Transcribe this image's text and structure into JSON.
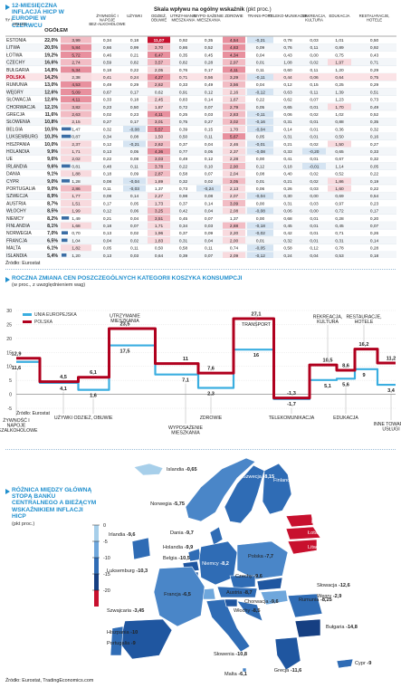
{
  "table": {
    "title": "12-MIESIĘCZNA INFLACJA HICP W EUROPIE W CZERWCU",
    "scale_label": "Skala wpływu na ogólny wskaźnik",
    "scale_unit": "(pkt proc.)",
    "headers": [
      "OGÓŁEM",
      "ŻYWNOŚĆ I NAPOJE BEZ-ALKOHOLOWE",
      "UŻYWKI",
      "ODZIEŻ, OBUWIE",
      "UTRZY-MANIE MIESZKANIA",
      "WYPO-SAŻENIE MIESZKANIA",
      "ZDROWIE",
      "TRANS-PORT",
      "TELEKO-MUNIKACJA",
      "REKREACJA, KULTURA",
      "EDUKACJA",
      "RESTAU-RACJE, HOTELE",
      "INNE TOWARY I USŁUGI"
    ],
    "rows": [
      {
        "country": "ESTONIA",
        "total": "22,0%",
        "v": [
          "3,99",
          "0,34",
          "0,18",
          "11,07",
          "0,92",
          "0,35",
          "4,54",
          "-0,21",
          "0,78",
          "0,03",
          "1,01",
          "0,50"
        ]
      },
      {
        "country": "LITWA",
        "total": "20,5%",
        "v": [
          "5,84",
          "0,66",
          "0,99",
          "3,70",
          "0,86",
          "0,52",
          "4,83",
          "0,09",
          "0,76",
          "0,11",
          "0,89",
          "0,92"
        ]
      },
      {
        "country": "ŁOTWA",
        "total": "19,2%",
        "v": [
          "5,72",
          "0,46",
          "0,21",
          "6,47",
          "0,35",
          "0,45",
          "4,34",
          "0,04",
          "0,43",
          "0,00",
          "0,75",
          "0,43"
        ]
      },
      {
        "country": "CZECHY",
        "total": "16,6%",
        "v": [
          "2,74",
          "0,59",
          "0,82",
          "3,57",
          "0,82",
          "0,28",
          "2,97",
          "0,01",
          "1,08",
          "0,02",
          "1,97",
          "0,71"
        ]
      },
      {
        "country": "BUŁGARIA",
        "total": "14,8%",
        "v": [
          "5,34",
          "0,18",
          "0,22",
          "2,05",
          "0,76",
          "0,17",
          "4,11",
          "0,11",
          "0,60",
          "0,11",
          "1,20",
          "0,29"
        ]
      },
      {
        "country": "POLSKA",
        "total": "14,2%",
        "v": [
          "2,38",
          "0,41",
          "0,24",
          "4,27",
          "0,71",
          "0,56",
          "3,29",
          "-0,11",
          "0,44",
          "0,06",
          "0,64",
          "0,75"
        ],
        "highlight": true
      },
      {
        "country": "RUMUNIA",
        "total": "13,0%",
        "v": [
          "4,53",
          "0,49",
          "0,29",
          "2,62",
          "0,33",
          "0,49",
          "3,56",
          "0,04",
          "0,12",
          "0,15",
          "0,25",
          "0,29"
        ]
      },
      {
        "country": "WĘGRY",
        "total": "12,6%",
        "v": [
          "5,09",
          "0,67",
          "0,17",
          "0,62",
          "0,91",
          "0,12",
          "2,16",
          "-0,12",
          "0,63",
          "0,11",
          "1,39",
          "0,51"
        ]
      },
      {
        "country": "SŁOWACJA",
        "total": "12,6%",
        "v": [
          "4,11",
          "0,33",
          "0,18",
          "2,45",
          "0,83",
          "0,14",
          "1,67",
          "0,22",
          "0,62",
          "0,07",
          "1,23",
          "0,73"
        ]
      },
      {
        "country": "CHORWACJA",
        "total": "12,1%",
        "v": [
          "3,82",
          "0,23",
          "0,50",
          "1,87",
          "0,72",
          "0,07",
          "2,79",
          "0,05",
          "0,65",
          "0,01",
          "1,70",
          "0,49"
        ]
      },
      {
        "country": "GRECJA",
        "total": "11,6%",
        "v": [
          "2,63",
          "0,02",
          "0,23",
          "4,11",
          "0,25",
          "0,03",
          "2,83",
          "-0,11",
          "0,06",
          "0,02",
          "1,02",
          "0,52"
        ]
      },
      {
        "country": "SŁOWENIA",
        "total": "10,8%",
        "v": [
          "2,15",
          "0,27",
          "0,17",
          "3,01",
          "0,75",
          "0,27",
          "3,02",
          "-0,16",
          "0,31",
          "0,01",
          "0,88",
          "0,35"
        ]
      },
      {
        "country": "BELGIA",
        "total": "10,5%",
        "v": [
          "1,47",
          "0,32",
          "-0,08",
          "5,57",
          "0,39",
          "0,15",
          "1,70",
          "-0,04",
          "0,14",
          "0,01",
          "0,36",
          "0,32"
        ]
      },
      {
        "country": "LUKSEMBURG",
        "total": "10,3%",
        "v": [
          "0,87",
          "0,34",
          "0,08",
          "1,50",
          "0,50",
          "0,11",
          "5,67",
          "0,05",
          "0,31",
          "0,01",
          "0,50",
          "0,16"
        ]
      },
      {
        "country": "HISZPANIA",
        "total": "10,0%",
        "v": [
          "2,37",
          "0,12",
          "-0,21",
          "2,62",
          "0,37",
          "0,04",
          "2,46",
          "-0,01",
          "0,21",
          "0,02",
          "1,50",
          "0,27"
        ]
      },
      {
        "country": "HOLANDIA",
        "total": "9,9%",
        "v": [
          "1,71",
          "0,13",
          "0,05",
          "4,36",
          "0,77",
          "0,05",
          "2,37",
          "-0,08",
          "0,33",
          "-0,20",
          "0,65",
          "0,33"
        ]
      },
      {
        "country": "UE",
        "total": "9,6%",
        "v": [
          "2,02",
          "0,22",
          "0,08",
          "3,03",
          "0,49",
          "0,12",
          "2,28",
          "0,00",
          "0,41",
          "0,01",
          "0,67",
          "0,32"
        ]
      },
      {
        "country": "IRLANDIA",
        "total": "9,6%",
        "v": [
          "0,81",
          "0,48",
          "0,11",
          "3,78",
          "0,22",
          "0,10",
          "2,90",
          "0,12",
          "0,18",
          "-0,01",
          "1,14",
          "0,05"
        ]
      },
      {
        "country": "DANIA",
        "total": "9,1%",
        "v": [
          "1,88",
          "0,18",
          "0,09",
          "2,87",
          "0,58",
          "0,07",
          "2,04",
          "0,08",
          "0,40",
          "0,02",
          "0,52",
          "0,22"
        ]
      },
      {
        "country": "CYPR",
        "total": "9,0%",
        "v": [
          "1,28",
          "0,08",
          "-0,04",
          "1,89",
          "0,32",
          "0,02",
          "3,05",
          "0,01",
          "0,21",
          "0,02",
          "1,86",
          "0,19"
        ]
      },
      {
        "country": "PORTUGALIA",
        "total": "9,0%",
        "v": [
          "2,86",
          "0,11",
          "-0,03",
          "1,37",
          "0,73",
          "-0,24",
          "2,13",
          "0,06",
          "0,26",
          "0,03",
          "1,60",
          "0,22"
        ]
      },
      {
        "country": "SZWECJA",
        "total": "8,9%",
        "v": [
          "1,77",
          "0,08",
          "0,14",
          "2,27",
          "0,98",
          "0,08",
          "2,07",
          "-0,04",
          "0,30",
          "0,00",
          "0,69",
          "0,54"
        ]
      },
      {
        "country": "AUSTRIA",
        "total": "8,7%",
        "v": [
          "1,51",
          "0,17",
          "0,05",
          "1,73",
          "0,37",
          "0,14",
          "3,09",
          "0,00",
          "0,31",
          "0,03",
          "0,97",
          "0,23"
        ]
      },
      {
        "country": "WŁOCHY",
        "total": "8,5%",
        "v": [
          "1,99",
          "0,12",
          "0,06",
          "3,25",
          "0,42",
          "0,04",
          "2,08",
          "-0,08",
          "0,06",
          "0,00",
          "0,72",
          "0,17"
        ]
      },
      {
        "country": "NIEMCY",
        "total": "8,2%",
        "v": [
          "1,49",
          "0,21",
          "0,04",
          "3,51",
          "0,45",
          "0,07",
          "1,37",
          "0,00",
          "0,68",
          "0,01",
          "0,28",
          "0,20"
        ]
      },
      {
        "country": "FINLANDIA",
        "total": "8,1%",
        "v": [
          "1,68",
          "0,18",
          "0,07",
          "1,71",
          "0,34",
          "0,03",
          "2,88",
          "-0,18",
          "0,45",
          "0,01",
          "0,45",
          "0,07"
        ]
      },
      {
        "country": "NORWEGIA",
        "total": "7,0%",
        "v": [
          "0,70",
          "0,13",
          "0,02",
          "1,96",
          "0,37",
          "0,09",
          "2,20",
          "-0,02",
          "0,42",
          "0,01",
          "0,71",
          "0,26"
        ]
      },
      {
        "country": "FRANCJA",
        "total": "6,5%",
        "v": [
          "1,04",
          "0,04",
          "0,02",
          "1,83",
          "0,31",
          "0,04",
          "2,00",
          "0,01",
          "0,32",
          "0,01",
          "0,31",
          "0,14"
        ]
      },
      {
        "country": "MALTA",
        "total": "6,1%",
        "v": [
          "1,82",
          "0,05",
          "0,11",
          "0,50",
          "0,58",
          "0,11",
          "0,74",
          "-0,05",
          "0,58",
          "0,12",
          "0,78",
          "0,28"
        ]
      },
      {
        "country": "ISLANDIA",
        "total": "5,4%",
        "v": [
          "1,20",
          "0,13",
          "0,03",
          "0,64",
          "0,39",
          "0,07",
          "2,09",
          "-0,12",
          "0,24",
          "0,04",
          "0,53",
          "0,18"
        ]
      },
      {
        "country": "SZWAJCARIA",
        "total": "3,2%",
        "v": [
          "0,24",
          "0,04",
          "0,07",
          "1,12",
          "0,20",
          "-0,07",
          "1,28",
          "0,02",
          "0,19",
          "0,01",
          "0,12",
          "0,05"
        ]
      }
    ],
    "source": "Źródło: Eurostat"
  },
  "chart_data": [
    {
      "type": "line",
      "title": "ROCZNA ZMIANA CEN POSZCZEGÓLNYCH KATEGORII KOSZYKA KONSUMPCJI",
      "subtitle": "(w proc., z uwzględnieniem wag)",
      "categories": [
        "ŻYWNOŚĆ I NAPOJE BEZALKOHOLOWE",
        "UŻYWKI",
        "ODZIEŻ, OBUWIE",
        "UTRZYMANIE MIESZKANIA",
        "WYPOSAŻENIE MIESZKANIA",
        "ZDROWIE",
        "TRANSPORT",
        "TELEKOMUNIKACJA",
        "REKREACJA, KULTURA",
        "EDUKACJA",
        "RESTAURACJE, HOTELE",
        "INNE TOWARY I USŁUGI"
      ],
      "series": [
        {
          "name": "UNIA EUROPEJSKA",
          "color": "#3aaee0",
          "values": [
            11.6,
            4.1,
            1.6,
            17.5,
            7.1,
            2.3,
            16.0,
            -1.7,
            5.1,
            5.6,
            9.0,
            3.4
          ]
        },
        {
          "name": "POLSKA",
          "color": "#b0001e",
          "values": [
            12.9,
            4.5,
            6.1,
            23.5,
            11.0,
            7.6,
            27.1,
            -1.3,
            10.5,
            8.6,
            16.2,
            11.2
          ]
        }
      ],
      "ylim": [
        -5,
        30
      ],
      "yticks": [
        -5,
        0,
        5,
        10,
        15,
        20,
        25,
        30
      ],
      "grid": true,
      "legend": "top-left",
      "source": "Źródło: Eurostat"
    },
    {
      "type": "map",
      "title": "RÓŻNICA MIĘDZY GŁÓWNĄ STOPĄ BANKU CENTRALNEGO A BIEŻĄCYM WSKAŹNIKIEM INFLACJI HICP",
      "subtitle": "(pkt proc.)",
      "legend_ticks": [
        "0",
        "-5",
        "-10",
        "-15",
        "-20"
      ],
      "regions": [
        {
          "name": "Islandia",
          "value": "-0,65"
        },
        {
          "name": "Norwegia",
          "value": "-5,75"
        },
        {
          "name": "Szwecja",
          "value": "-8,15"
        },
        {
          "name": "Finlandia",
          "value": "-8,1"
        },
        {
          "name": "Estonia",
          "value": "-22"
        },
        {
          "name": "Łotwa",
          "value": "-19,2"
        },
        {
          "name": "Litwa",
          "value": "-20,5"
        },
        {
          "name": "Dania",
          "value": "-9,7"
        },
        {
          "name": "Holandia",
          "value": "-9,9"
        },
        {
          "name": "Belgia",
          "value": "-10,5"
        },
        {
          "name": "Irlandia",
          "value": "-9,6"
        },
        {
          "name": "Luksemburg",
          "value": "-10,3"
        },
        {
          "name": "Niemcy",
          "value": "-8,2"
        },
        {
          "name": "Polska",
          "value": "-7,7"
        },
        {
          "name": "Czechy",
          "value": "-9,6"
        },
        {
          "name": "Słowacja",
          "value": "-12,6"
        },
        {
          "name": "Węgry",
          "value": "-2,9"
        },
        {
          "name": "Austria",
          "value": "-8,7"
        },
        {
          "name": "Szwajcaria",
          "value": "-3,45"
        },
        {
          "name": "Francja",
          "value": "-6,5"
        },
        {
          "name": "Hiszpania",
          "value": "-10"
        },
        {
          "name": "Portugalia",
          "value": "-9"
        },
        {
          "name": "Włochy",
          "value": "-8,5"
        },
        {
          "name": "Chorwacja",
          "value": "-9,6"
        },
        {
          "name": "Słowenia",
          "value": "-10,8"
        },
        {
          "name": "Rumunia",
          "value": "-8,25"
        },
        {
          "name": "Bułgaria",
          "value": "-14,8"
        },
        {
          "name": "Grecja",
          "value": "-11,6"
        },
        {
          "name": "Malta",
          "value": "-6,1"
        },
        {
          "name": "Cypr",
          "value": "-9"
        }
      ],
      "source": "Źródło: Eurostat, TradingEconomics.com"
    }
  ]
}
